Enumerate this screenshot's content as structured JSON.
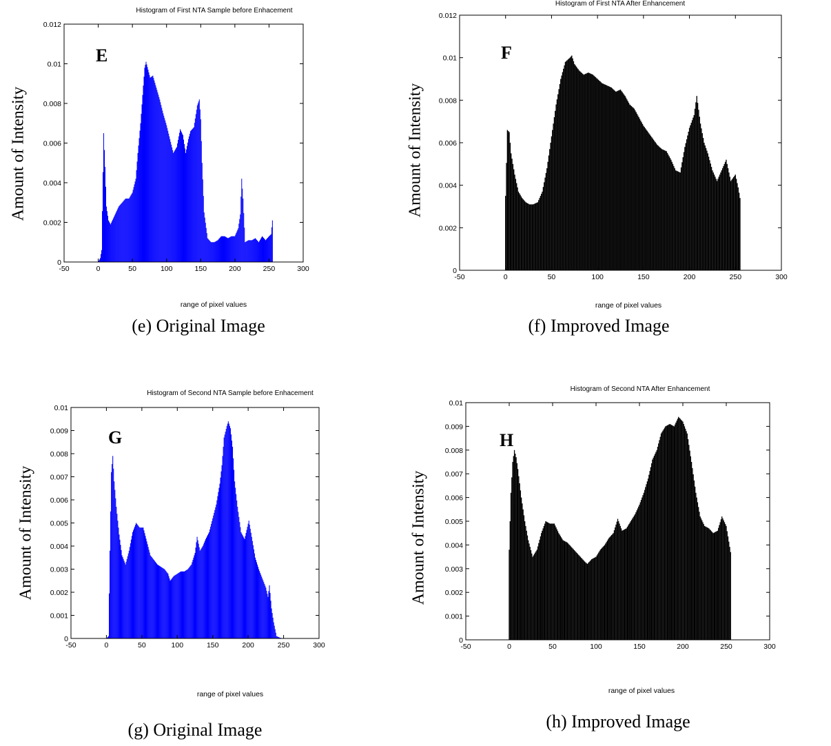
{
  "colors": {
    "original": "#0000ff",
    "improved": "#000000",
    "axis": "#000000",
    "background": "#ffffff"
  },
  "chart_data": [
    {
      "type": "bar",
      "id": "e",
      "title": "Histogram of First NTA Sample before Enhacement",
      "panel_letter": "E",
      "caption": "(e) Original Image",
      "xlabel": "range of pixel values",
      "ylabel": "Amount of Intensity",
      "xlim": [
        -50,
        300
      ],
      "ylim": [
        0,
        0.012
      ],
      "xticks": [
        -50,
        0,
        50,
        100,
        150,
        200,
        250,
        300
      ],
      "xtick_labels": [
        "-50",
        "0",
        "50",
        "100",
        "150",
        "200",
        "250",
        "300"
      ],
      "yticks": [
        0,
        0.002,
        0.004,
        0.006,
        0.008,
        0.01,
        0.012
      ],
      "ytick_labels": [
        "0",
        "0.002",
        "0.004",
        "0.006",
        "0.008",
        "0.01",
        "0.012"
      ],
      "grid": false,
      "color": "#0000ff",
      "x": [
        0,
        3,
        5,
        8,
        10,
        12,
        15,
        18,
        22,
        26,
        30,
        35,
        40,
        45,
        50,
        55,
        58,
        62,
        66,
        68,
        70,
        73,
        76,
        80,
        85,
        90,
        95,
        100,
        105,
        110,
        115,
        120,
        124,
        128,
        132,
        135,
        140,
        145,
        148,
        150,
        152,
        155,
        160,
        165,
        170,
        175,
        180,
        185,
        190,
        195,
        200,
        205,
        208,
        210,
        212,
        215,
        220,
        225,
        230,
        235,
        240,
        245,
        250,
        253,
        255
      ],
      "values": [
        0,
        0.0002,
        0.0006,
        0.0065,
        0.0048,
        0.0028,
        0.0021,
        0.0019,
        0.0022,
        0.0025,
        0.0028,
        0.003,
        0.0032,
        0.0032,
        0.0035,
        0.0042,
        0.0055,
        0.007,
        0.0089,
        0.0098,
        0.0101,
        0.0097,
        0.0093,
        0.0094,
        0.0088,
        0.0082,
        0.0075,
        0.0069,
        0.0062,
        0.0055,
        0.0058,
        0.0067,
        0.0064,
        0.0055,
        0.0062,
        0.0066,
        0.0068,
        0.0079,
        0.0082,
        0.0072,
        0.005,
        0.0025,
        0.0012,
        0.001,
        0.001,
        0.0011,
        0.0013,
        0.0013,
        0.0012,
        0.0013,
        0.0013,
        0.0017,
        0.0024,
        0.0042,
        0.0032,
        0.001,
        0.0011,
        0.0011,
        0.0012,
        0.001,
        0.0013,
        0.0011,
        0.0013,
        0.0014,
        0.0021
      ]
    },
    {
      "type": "bar",
      "id": "f",
      "title": "Histogram of First NTA After Enhancement",
      "panel_letter": "F",
      "caption": "(f) Improved Image",
      "xlabel": "range of pixel values",
      "ylabel": "Amount of Intensity",
      "xlim": [
        -50,
        300
      ],
      "ylim": [
        0,
        0.012
      ],
      "xticks": [
        -50,
        0,
        50,
        100,
        150,
        200,
        250,
        300
      ],
      "xtick_labels": [
        "-50",
        "0",
        "50",
        "100",
        "150",
        "200",
        "250",
        "300"
      ],
      "yticks": [
        0,
        0.002,
        0.004,
        0.006,
        0.008,
        0.01,
        0.012
      ],
      "ytick_labels": [
        "0",
        "0.002",
        "0.004",
        "0.006",
        "0.008",
        "0.01",
        "0.012"
      ],
      "grid": false,
      "color": "#000000",
      "x": [
        0,
        2,
        4,
        6,
        10,
        14,
        18,
        22,
        26,
        30,
        35,
        40,
        45,
        50,
        55,
        60,
        65,
        70,
        72,
        75,
        80,
        85,
        90,
        95,
        100,
        105,
        110,
        115,
        120,
        125,
        130,
        135,
        140,
        145,
        150,
        155,
        160,
        165,
        170,
        175,
        180,
        185,
        190,
        195,
        200,
        205,
        208,
        212,
        216,
        220,
        225,
        230,
        235,
        240,
        245,
        250,
        253,
        255
      ],
      "values": [
        0.0035,
        0.0066,
        0.0065,
        0.0055,
        0.0045,
        0.0037,
        0.0034,
        0.0032,
        0.0031,
        0.0031,
        0.0032,
        0.0037,
        0.0048,
        0.0063,
        0.0078,
        0.009,
        0.0098,
        0.01,
        0.0101,
        0.0097,
        0.0094,
        0.0092,
        0.0093,
        0.0092,
        0.009,
        0.0088,
        0.0087,
        0.0086,
        0.0084,
        0.0085,
        0.0082,
        0.0078,
        0.0076,
        0.0072,
        0.0068,
        0.0065,
        0.0062,
        0.0059,
        0.0057,
        0.0056,
        0.0052,
        0.0047,
        0.0046,
        0.0058,
        0.0067,
        0.0073,
        0.0082,
        0.0069,
        0.006,
        0.0055,
        0.0047,
        0.0042,
        0.0047,
        0.0052,
        0.0042,
        0.0045,
        0.0039,
        0.0034
      ]
    },
    {
      "type": "bar",
      "id": "g",
      "title": "Histogram of Second NTA Sample before Enhacement",
      "panel_letter": "G",
      "caption": "(g) Original Image",
      "xlabel": "range of pixel values",
      "ylabel": "Amount of Intensity",
      "xlim": [
        -50,
        300
      ],
      "ylim": [
        0,
        0.01
      ],
      "xticks": [
        -50,
        0,
        50,
        100,
        150,
        200,
        250,
        300
      ],
      "xtick_labels": [
        "-50",
        "0",
        "50",
        "100",
        "150",
        "200",
        "250",
        "300"
      ],
      "yticks": [
        0,
        0.001,
        0.002,
        0.003,
        0.004,
        0.005,
        0.006,
        0.007,
        0.008,
        0.009,
        0.01
      ],
      "ytick_labels": [
        "0",
        "0.001",
        "0.002",
        "0.003",
        "0.004",
        "0.005",
        "0.006",
        "0.007",
        "0.008",
        "0.009",
        "0.01"
      ],
      "grid": false,
      "color": "#0000ff",
      "x": [
        0,
        3,
        5,
        7,
        9,
        11,
        14,
        18,
        22,
        27,
        32,
        37,
        42,
        47,
        52,
        57,
        62,
        67,
        72,
        77,
        82,
        87,
        90,
        95,
        100,
        105,
        110,
        115,
        120,
        125,
        128,
        132,
        136,
        140,
        145,
        150,
        155,
        160,
        163,
        166,
        170,
        172,
        175,
        178,
        181,
        185,
        190,
        195,
        198,
        201,
        205,
        210,
        215,
        220,
        225,
        228,
        230,
        233,
        236,
        240,
        245,
        250,
        255
      ],
      "values": [
        0,
        0.0001,
        0.0038,
        0.0072,
        0.0079,
        0.0068,
        0.0057,
        0.0045,
        0.0036,
        0.0032,
        0.0038,
        0.0046,
        0.005,
        0.0048,
        0.0048,
        0.0042,
        0.0036,
        0.0034,
        0.0032,
        0.0031,
        0.003,
        0.0028,
        0.0025,
        0.0027,
        0.0028,
        0.0029,
        0.0029,
        0.003,
        0.0032,
        0.0037,
        0.0044,
        0.0038,
        0.004,
        0.0043,
        0.0046,
        0.0052,
        0.0058,
        0.0067,
        0.0075,
        0.0087,
        0.0092,
        0.0094,
        0.0091,
        0.0083,
        0.0068,
        0.0057,
        0.0046,
        0.0043,
        0.0047,
        0.0051,
        0.0044,
        0.0035,
        0.003,
        0.0026,
        0.0022,
        0.0018,
        0.0023,
        0.0013,
        0.0007,
        0.0001,
        3e-05,
        0,
        0
      ]
    },
    {
      "type": "bar",
      "id": "h",
      "title": "Histogram of Second NTA After Enhancement",
      "panel_letter": "H",
      "caption": "(h) Improved Image",
      "xlabel": "range of pixel values",
      "ylabel": "Amount of Intensity",
      "xlim": [
        -50,
        300
      ],
      "ylim": [
        0,
        0.01
      ],
      "xticks": [
        -50,
        0,
        50,
        100,
        150,
        200,
        250,
        300
      ],
      "xtick_labels": [
        "-50",
        "0",
        "50",
        "100",
        "150",
        "200",
        "250",
        "300"
      ],
      "yticks": [
        0,
        0.001,
        0.002,
        0.003,
        0.004,
        0.005,
        0.006,
        0.007,
        0.008,
        0.009,
        0.01
      ],
      "ytick_labels": [
        "0",
        "0.001",
        "0.002",
        "0.003",
        "0.004",
        "0.005",
        "0.006",
        "0.007",
        "0.008",
        "0.009",
        "0.01"
      ],
      "grid": false,
      "color": "#000000",
      "x": [
        0,
        2,
        4,
        6,
        8,
        10,
        14,
        18,
        22,
        27,
        32,
        37,
        42,
        47,
        52,
        57,
        62,
        67,
        72,
        77,
        82,
        87,
        90,
        95,
        100,
        105,
        110,
        115,
        120,
        125,
        130,
        135,
        140,
        145,
        150,
        155,
        160,
        165,
        170,
        175,
        180,
        185,
        190,
        195,
        200,
        205,
        210,
        215,
        220,
        225,
        230,
        235,
        240,
        245,
        250,
        255
      ],
      "values": [
        0.0038,
        0.0062,
        0.0075,
        0.008,
        0.0077,
        0.0072,
        0.006,
        0.005,
        0.0042,
        0.0035,
        0.0038,
        0.0045,
        0.005,
        0.0049,
        0.0049,
        0.0045,
        0.0042,
        0.0041,
        0.0039,
        0.0037,
        0.0035,
        0.0033,
        0.0032,
        0.0034,
        0.0035,
        0.0038,
        0.004,
        0.0043,
        0.0045,
        0.0051,
        0.0046,
        0.0047,
        0.005,
        0.0053,
        0.0057,
        0.0062,
        0.0068,
        0.0076,
        0.008,
        0.0087,
        0.009,
        0.0091,
        0.009,
        0.0094,
        0.0092,
        0.0087,
        0.0075,
        0.0062,
        0.0052,
        0.0048,
        0.0047,
        0.0045,
        0.0046,
        0.0052,
        0.0048,
        0.0037
      ]
    }
  ]
}
